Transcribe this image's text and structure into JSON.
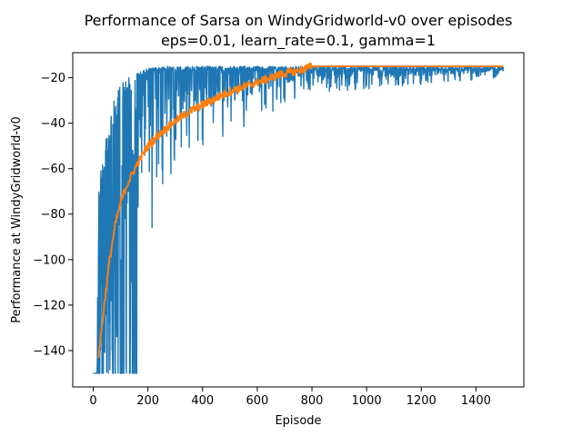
{
  "chart_data": {
    "type": "line",
    "title": "Performance of Sarsa on WindyGridworld-v0 over episodes",
    "subtitle": "eps=0.01, learn_rate=0.1, gamma=1",
    "xlabel": "Episode",
    "ylabel": "Performance at WindyGridworld-v0",
    "xlim": [
      -75,
      1575
    ],
    "ylim": [
      -156,
      -9
    ],
    "xticks": [
      0,
      200,
      400,
      600,
      800,
      1000,
      1200,
      1400
    ],
    "yticks": [
      -140,
      -120,
      -100,
      -80,
      -60,
      -40,
      -20
    ],
    "x_tick_labels": [
      "0",
      "200",
      "400",
      "600",
      "800",
      "1000",
      "1200",
      "1400"
    ],
    "y_tick_labels": [
      "−140",
      "−120",
      "−100",
      "−80",
      "−60",
      "−40",
      "−20"
    ],
    "grid": false,
    "series": [
      {
        "color": "#1f77b4",
        "style": "noisy",
        "x_range": [
          0,
          1500
        ],
        "envelope": [
          {
            "x": 0,
            "low": -150,
            "high": -150
          },
          {
            "x": 15,
            "low": -150,
            "high": -130
          },
          {
            "x": 20,
            "low": -150,
            "high": -63
          },
          {
            "x": 50,
            "low": -150,
            "high": -45
          },
          {
            "x": 80,
            "low": -150,
            "high": -28
          },
          {
            "x": 100,
            "low": -150,
            "high": -22
          },
          {
            "x": 150,
            "low": -150,
            "high": -18
          },
          {
            "x": 160,
            "low": -90,
            "high": -18
          },
          {
            "x": 200,
            "low": -95,
            "high": -16
          },
          {
            "x": 260,
            "low": -75,
            "high": -15
          },
          {
            "x": 300,
            "low": -60,
            "high": -15
          },
          {
            "x": 400,
            "low": -50,
            "high": -15
          },
          {
            "x": 500,
            "low": -45,
            "high": -15
          },
          {
            "x": 600,
            "low": -40,
            "high": -15
          },
          {
            "x": 700,
            "low": -32,
            "high": -15
          },
          {
            "x": 800,
            "low": -27,
            "high": -15
          },
          {
            "x": 1000,
            "low": -25,
            "high": -15
          },
          {
            "x": 1200,
            "low": -23,
            "high": -15
          },
          {
            "x": 1500,
            "low": -20,
            "high": -15
          }
        ]
      },
      {
        "color": "#ff7f0e",
        "style": "smoothed",
        "x": [
          20,
          40,
          60,
          80,
          100,
          120,
          140,
          160,
          180,
          200,
          250,
          300,
          350,
          400,
          450,
          500,
          550,
          600,
          650,
          700,
          750,
          800,
          900,
          1000,
          1200,
          1400,
          1500
        ],
        "y": [
          -142,
          -120,
          -100,
          -85,
          -75,
          -68,
          -63,
          -58,
          -54,
          -50,
          -44,
          -39,
          -35,
          -32,
          -29,
          -26,
          -24,
          -22,
          -20,
          -18,
          -17,
          -15,
          -15,
          -15,
          -15,
          -15,
          -15
        ]
      }
    ]
  }
}
